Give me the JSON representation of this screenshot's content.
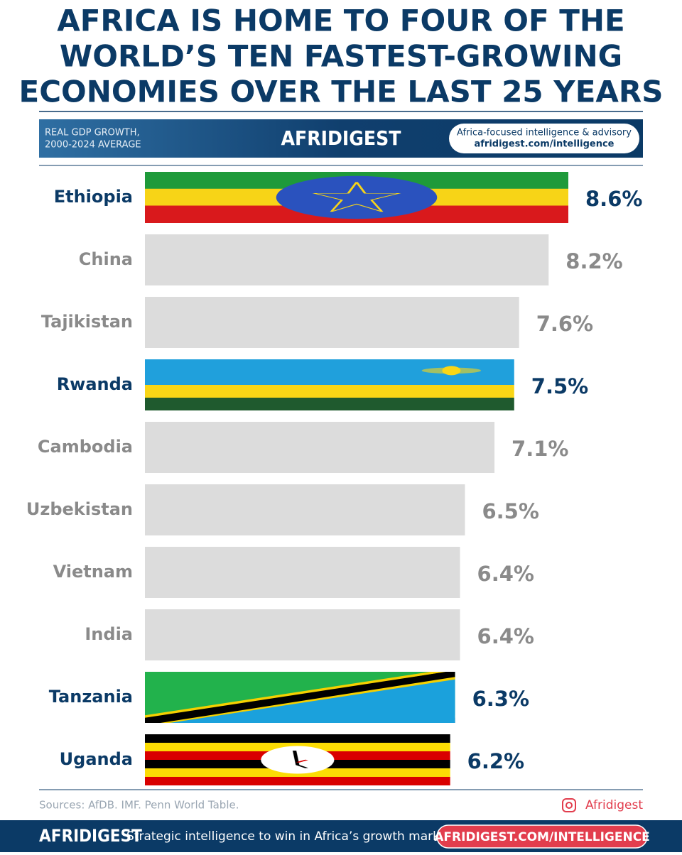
{
  "header": {
    "title_lines": [
      "AFRICA IS HOME TO FOUR OF THE",
      "WORLD’S TEN FASTEST-GROWING",
      "ECONOMIES OVER THE LAST 25 YEARS"
    ],
    "subtitle_lines": [
      "REAL GDP GROWTH,",
      "2000-2024 AVERAGE"
    ],
    "logo": "AFRIDIGEST",
    "tagline_lines": [
      "Africa-focused intelligence & advisory",
      "afridigest.com/intelligence"
    ]
  },
  "chart_data": {
    "type": "bar",
    "orientation": "horizontal",
    "categories": [
      "Ethiopia",
      "China",
      "Tajikistan",
      "Rwanda",
      "Cambodia",
      "Uzbekistan",
      "Vietnam",
      "India",
      "Tanzania",
      "Uganda"
    ],
    "values": [
      8.6,
      8.2,
      7.6,
      7.5,
      7.1,
      6.5,
      6.4,
      6.4,
      6.3,
      6.2
    ],
    "value_labels": [
      "8.6%",
      "8.2%",
      "7.6%",
      "7.5%",
      "7.1%",
      "6.5%",
      "6.4%",
      "6.4%",
      "6.3%",
      "6.2%"
    ],
    "color": "#dcdcdc",
    "highlight_text_color": "#0b3a66",
    "text_color": "#8a8a8a"
  },
  "footer": {
    "source": "Sources: AfDB. IMF. Penn World Table.",
    "social": "Afridigest",
    "brand": "AFRIDIGEST",
    "slogan": "Strategic intelligence to win in Africa’s growth markets.",
    "url": "AFRIDIGEST.COM/INTELLIGENCE"
  }
}
